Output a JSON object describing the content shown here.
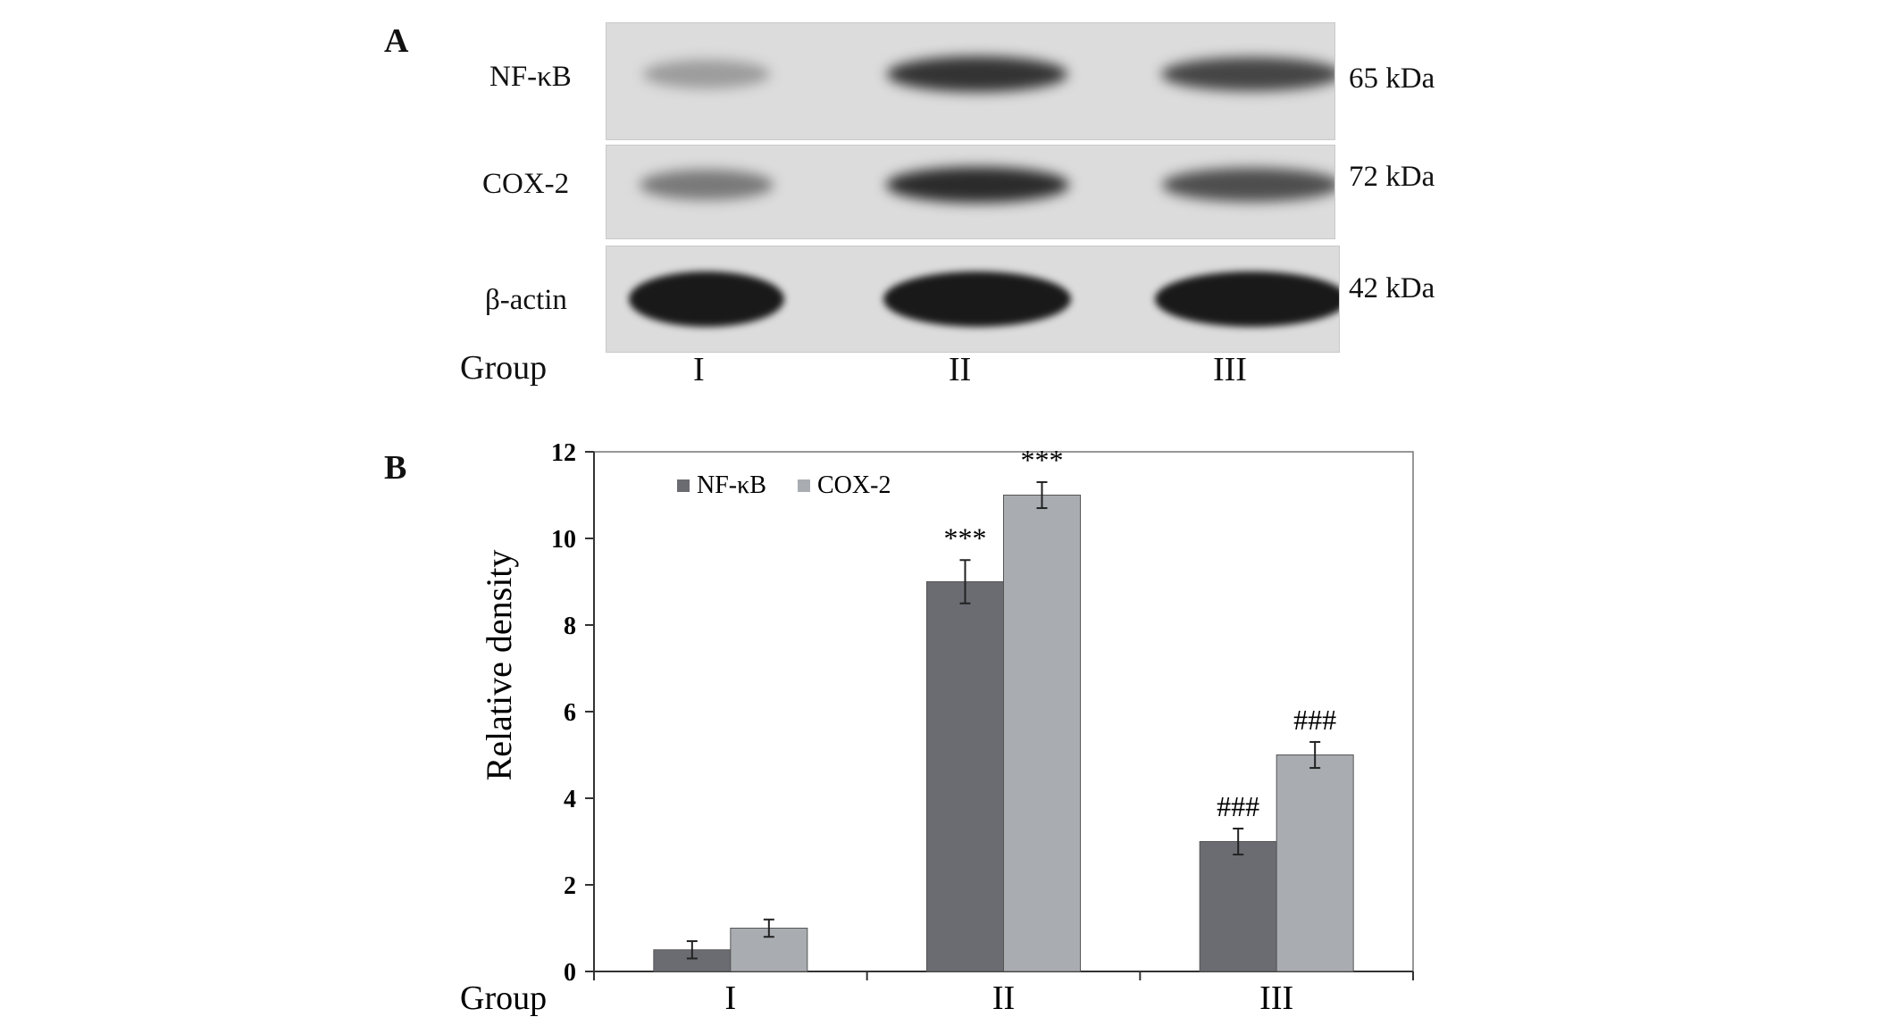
{
  "panel_a": {
    "letter": "A",
    "proteins": [
      {
        "name": "NF-κB",
        "kda": "65 kDa",
        "band_intensity": [
          0.25,
          0.85,
          0.75
        ]
      },
      {
        "name": "COX-2",
        "kda": "72 kDa",
        "band_intensity": [
          0.45,
          0.9,
          0.7
        ]
      },
      {
        "name": "β-actin",
        "kda": "42 kDa",
        "band_intensity": [
          1.0,
          1.0,
          1.0
        ]
      }
    ],
    "group_label": "Group",
    "lanes": [
      "I",
      "II",
      "III"
    ]
  },
  "panel_b": {
    "letter": "B"
  },
  "chart_data": {
    "type": "bar",
    "title": "",
    "xlabel": "Group",
    "ylabel": "Relative density",
    "categories": [
      "I",
      "II",
      "III"
    ],
    "ylim": [
      0,
      12
    ],
    "yticks": [
      0,
      2,
      4,
      6,
      8,
      10,
      12
    ],
    "grid": false,
    "legend": "top-left",
    "series": [
      {
        "name": "NF-κB",
        "color": "#6b6c72",
        "values": [
          0.5,
          9.0,
          3.0
        ],
        "errors": [
          0.2,
          0.5,
          0.3
        ],
        "annotations": [
          "",
          "***",
          "###"
        ]
      },
      {
        "name": "COX-2",
        "color": "#a9adb1",
        "values": [
          1.0,
          11.0,
          5.0
        ],
        "errors": [
          0.2,
          0.3,
          0.3
        ],
        "annotations": [
          "",
          "***",
          "###"
        ]
      }
    ]
  }
}
